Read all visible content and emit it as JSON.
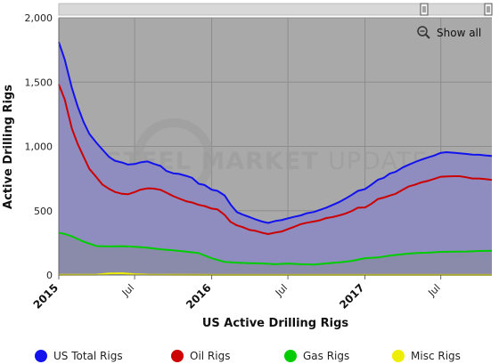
{
  "zoom": {
    "show_all_label": "Show all"
  },
  "watermark": {
    "bold": "STEEL MARKET ",
    "light": "UPDATE"
  },
  "chart_data": {
    "type": "area",
    "xlabel": "US Active Drilling Rigs",
    "ylabel": "Active Drilling Rigs",
    "ylim": [
      0,
      2000
    ],
    "yticks": [
      "0",
      "500",
      "1,000",
      "1,500",
      "2,000"
    ],
    "xlim": [
      "2015-01-01",
      "2017-10-31"
    ],
    "xticks": [
      {
        "date": "2015-01-01",
        "label": "2015",
        "major": true
      },
      {
        "date": "2015-07-01",
        "label": "Jul",
        "major": false
      },
      {
        "date": "2016-01-01",
        "label": "2016",
        "major": true
      },
      {
        "date": "2016-07-01",
        "label": "Jul",
        "major": false
      },
      {
        "date": "2017-01-01",
        "label": "2017",
        "major": true
      },
      {
        "date": "2017-07-01",
        "label": "Jul",
        "major": false
      }
    ],
    "grid": true,
    "legend_position": "bottom",
    "colors": {
      "plot_bg": "#a9a9a9",
      "area_fill": "#8f8cc0",
      "gas_fill": "#8a8aab"
    },
    "series": [
      {
        "name": "US Total Rigs",
        "color": "#1212ee",
        "x": [
          "2015-01-01",
          "2015-01-15",
          "2015-02-01",
          "2015-02-15",
          "2015-03-01",
          "2015-03-15",
          "2015-04-01",
          "2015-04-15",
          "2015-05-01",
          "2015-05-15",
          "2015-06-01",
          "2015-06-15",
          "2015-07-01",
          "2015-07-15",
          "2015-08-01",
          "2015-08-15",
          "2015-09-01",
          "2015-09-15",
          "2015-10-01",
          "2015-10-15",
          "2015-11-01",
          "2015-11-15",
          "2015-12-01",
          "2015-12-15",
          "2016-01-01",
          "2016-01-15",
          "2016-02-01",
          "2016-02-15",
          "2016-03-01",
          "2016-03-15",
          "2016-04-01",
          "2016-04-15",
          "2016-05-01",
          "2016-05-15",
          "2016-06-01",
          "2016-06-15",
          "2016-07-01",
          "2016-07-15",
          "2016-08-01",
          "2016-08-15",
          "2016-09-01",
          "2016-09-15",
          "2016-10-01",
          "2016-10-15",
          "2016-11-01",
          "2016-11-15",
          "2016-12-01",
          "2016-12-15",
          "2017-01-01",
          "2017-01-15",
          "2017-02-01",
          "2017-02-15",
          "2017-03-01",
          "2017-03-15",
          "2017-04-01",
          "2017-04-15",
          "2017-05-01",
          "2017-05-15",
          "2017-06-01",
          "2017-06-15",
          "2017-07-01",
          "2017-07-15",
          "2017-08-01",
          "2017-08-15",
          "2017-09-01",
          "2017-09-15",
          "2017-10-01",
          "2017-10-15",
          "2017-10-31"
        ],
        "values": [
          1811,
          1676,
          1456,
          1310,
          1192,
          1097,
          1028,
          976,
          918,
          888,
          875,
          859,
          863,
          876,
          883,
          866,
          848,
          809,
          791,
          786,
          771,
          756,
          709,
          700,
          664,
          654,
          619,
          549,
          489,
          470,
          450,
          432,
          415,
          405,
          420,
          426,
          440,
          452,
          464,
          480,
          490,
          506,
          524,
          544,
          568,
          593,
          624,
          654,
          668,
          700,
          741,
          756,
          788,
          802,
          836,
          857,
          879,
          896,
          915,
          929,
          950,
          955,
          951,
          946,
          941,
          936,
          935,
          930,
          925
        ]
      },
      {
        "name": "Oil Rigs",
        "color": "#cc0000",
        "x": [
          "2015-01-01",
          "2015-01-15",
          "2015-02-01",
          "2015-02-15",
          "2015-03-01",
          "2015-03-15",
          "2015-04-01",
          "2015-04-15",
          "2015-05-01",
          "2015-05-15",
          "2015-06-01",
          "2015-06-15",
          "2015-07-01",
          "2015-07-15",
          "2015-08-01",
          "2015-08-15",
          "2015-09-01",
          "2015-09-15",
          "2015-10-01",
          "2015-10-15",
          "2015-11-01",
          "2015-11-15",
          "2015-12-01",
          "2015-12-15",
          "2016-01-01",
          "2016-01-15",
          "2016-02-01",
          "2016-02-15",
          "2016-03-01",
          "2016-03-15",
          "2016-04-01",
          "2016-04-15",
          "2016-05-01",
          "2016-05-15",
          "2016-06-01",
          "2016-06-15",
          "2016-07-01",
          "2016-07-15",
          "2016-08-01",
          "2016-08-15",
          "2016-09-01",
          "2016-09-15",
          "2016-10-01",
          "2016-10-15",
          "2016-11-01",
          "2016-11-15",
          "2016-12-01",
          "2016-12-15",
          "2017-01-01",
          "2017-01-15",
          "2017-02-01",
          "2017-02-15",
          "2017-03-01",
          "2017-03-15",
          "2017-04-01",
          "2017-04-15",
          "2017-05-01",
          "2017-05-15",
          "2017-06-01",
          "2017-06-15",
          "2017-07-01",
          "2017-07-15",
          "2017-08-01",
          "2017-08-15",
          "2017-09-01",
          "2017-09-15",
          "2017-10-01",
          "2017-10-15",
          "2017-10-31"
        ],
        "values": [
          1482,
          1366,
          1140,
          1019,
          922,
          825,
          760,
          703,
          670,
          646,
          631,
          628,
          645,
          664,
          674,
          672,
          662,
          640,
          614,
          595,
          574,
          564,
          545,
          536,
          516,
          510,
          467,
          413,
          386,
          372,
          350,
          343,
          328,
          318,
          330,
          337,
          357,
          374,
          396,
          406,
          416,
          425,
          443,
          450,
          464,
          477,
          498,
          523,
          525,
          551,
          591,
          602,
          617,
          631,
          662,
          688,
          703,
          720,
          733,
          747,
          764,
          766,
          768,
          768,
          759,
          750,
          750,
          745,
          740
        ]
      },
      {
        "name": "Gas Rigs",
        "color": "#00cc00",
        "x": [
          "2015-01-01",
          "2015-01-15",
          "2015-02-01",
          "2015-03-01",
          "2015-04-01",
          "2015-05-01",
          "2015-06-01",
          "2015-07-01",
          "2015-08-01",
          "2015-09-01",
          "2015-10-01",
          "2015-11-01",
          "2015-12-01",
          "2016-01-01",
          "2016-02-01",
          "2016-03-01",
          "2016-04-01",
          "2016-05-01",
          "2016-06-01",
          "2016-07-01",
          "2016-08-01",
          "2016-09-01",
          "2016-10-01",
          "2016-11-01",
          "2016-12-01",
          "2017-01-01",
          "2017-02-01",
          "2017-03-01",
          "2017-04-01",
          "2017-05-01",
          "2017-06-01",
          "2017-07-01",
          "2017-08-01",
          "2017-09-01",
          "2017-10-01",
          "2017-10-31"
        ],
        "values": [
          328,
          320,
          300,
          260,
          225,
          222,
          224,
          220,
          212,
          200,
          192,
          181,
          170,
          130,
          102,
          96,
          92,
          90,
          84,
          89,
          84,
          82,
          90,
          98,
          110,
          131,
          136,
          151,
          162,
          170,
          174,
          180,
          181,
          183,
          187,
          188
        ]
      },
      {
        "name": "Misc Rigs",
        "color": "#eeee00",
        "x": [
          "2015-01-01",
          "2015-04-01",
          "2015-05-01",
          "2015-06-01",
          "2015-07-01",
          "2015-08-01",
          "2016-01-01",
          "2017-01-01",
          "2017-10-31"
        ],
        "values": [
          2,
          3,
          12,
          14,
          6,
          3,
          1,
          1,
          1
        ]
      }
    ]
  }
}
